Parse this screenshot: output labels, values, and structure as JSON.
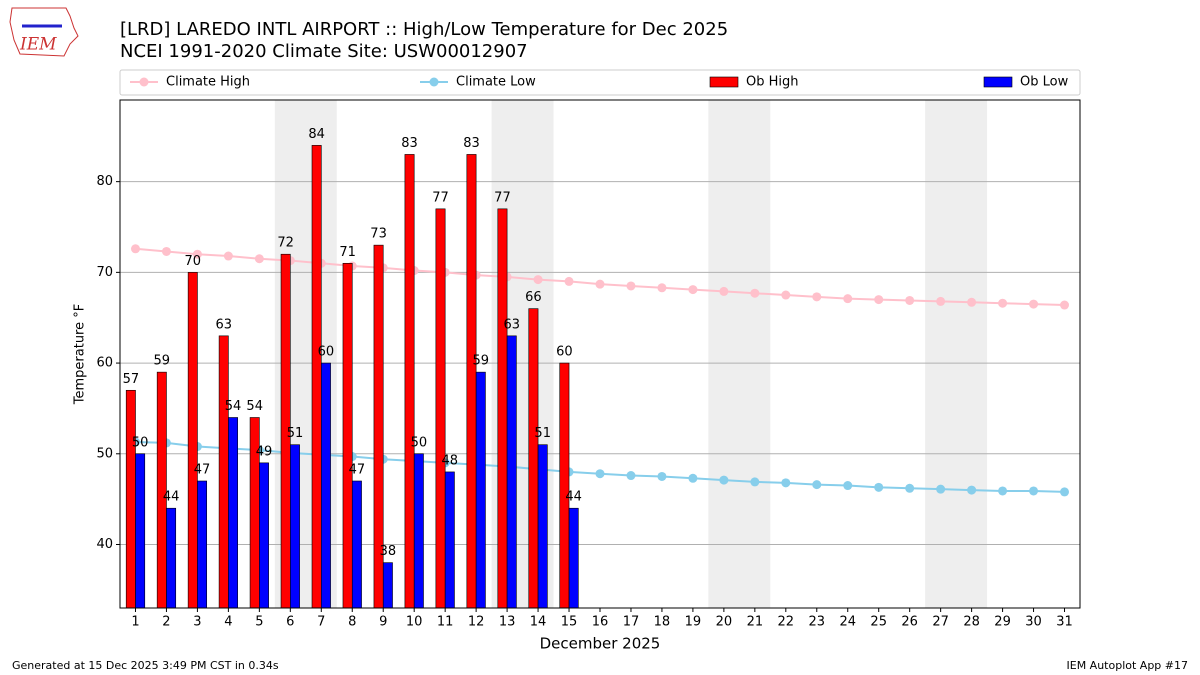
{
  "chart_data": {
    "type": "bar",
    "title": "[LRD] LAREDO INTL AIRPORT :: High/Low Temperature for Dec 2025",
    "subtitle": "NCEI 1991-2020 Climate Site: USW00012907",
    "xlabel": "December 2025",
    "ylabel": "Temperature °F",
    "footer_left": "Generated at 15 Dec 2025 3:49 PM CST in 0.34s",
    "footer_right": "IEM Autoplot App #17",
    "logo": "IEM",
    "x": [
      1,
      2,
      3,
      4,
      5,
      6,
      7,
      8,
      9,
      10,
      11,
      12,
      13,
      14,
      15,
      16,
      17,
      18,
      19,
      20,
      21,
      22,
      23,
      24,
      25,
      26,
      27,
      28,
      29,
      30,
      31
    ],
    "xlim": [
      0.5,
      31.5
    ],
    "xticks": [
      1,
      2,
      3,
      4,
      5,
      6,
      7,
      8,
      9,
      10,
      11,
      12,
      13,
      14,
      15,
      16,
      17,
      18,
      19,
      20,
      21,
      22,
      23,
      24,
      25,
      26,
      27,
      28,
      29,
      30,
      31
    ],
    "ylim": [
      33,
      89
    ],
    "yticks": [
      40,
      50,
      60,
      70,
      80
    ],
    "grid": true,
    "legend": "top",
    "shaded": [
      [
        5.5,
        7.5
      ],
      [
        12.5,
        14.5
      ],
      [
        19.5,
        21.5
      ],
      [
        26.5,
        28.5
      ]
    ],
    "shade_color": "#eeeeee",
    "series": [
      {
        "name": "Climate High",
        "type": "line",
        "color": "#ffc0cb",
        "values": [
          72.6,
          72.3,
          72.0,
          71.8,
          71.5,
          71.3,
          71.0,
          70.7,
          70.5,
          70.2,
          70.0,
          69.7,
          69.5,
          69.2,
          69.0,
          68.7,
          68.5,
          68.3,
          68.1,
          67.9,
          67.7,
          67.5,
          67.3,
          67.1,
          67.0,
          66.9,
          66.8,
          66.7,
          66.6,
          66.5,
          66.4
        ]
      },
      {
        "name": "Climate Low",
        "type": "line",
        "color": "#87ceeb",
        "values": [
          51.3,
          51.2,
          50.8,
          50.6,
          50.4,
          50.1,
          49.9,
          49.7,
          49.4,
          49.2,
          49.0,
          48.8,
          48.6,
          48.3,
          48.0,
          47.8,
          47.6,
          47.5,
          47.3,
          47.1,
          46.9,
          46.8,
          46.6,
          46.5,
          46.3,
          46.2,
          46.1,
          46.0,
          45.9,
          45.9,
          45.8
        ]
      },
      {
        "name": "Ob High",
        "type": "bar",
        "color": "#ff0000",
        "values": [
          57,
          59,
          70,
          63,
          54,
          72,
          84,
          71,
          73,
          83,
          77,
          83,
          77,
          66,
          60,
          null,
          null,
          null,
          null,
          null,
          null,
          null,
          null,
          null,
          null,
          null,
          null,
          null,
          null,
          null,
          null
        ]
      },
      {
        "name": "Ob Low",
        "type": "bar",
        "color": "#0000ff",
        "values": [
          50,
          44,
          47,
          54,
          49,
          51,
          60,
          47,
          38,
          50,
          48,
          59,
          63,
          51,
          44,
          null,
          null,
          null,
          null,
          null,
          null,
          null,
          null,
          null,
          null,
          null,
          null,
          null,
          null,
          null,
          null
        ]
      }
    ]
  }
}
